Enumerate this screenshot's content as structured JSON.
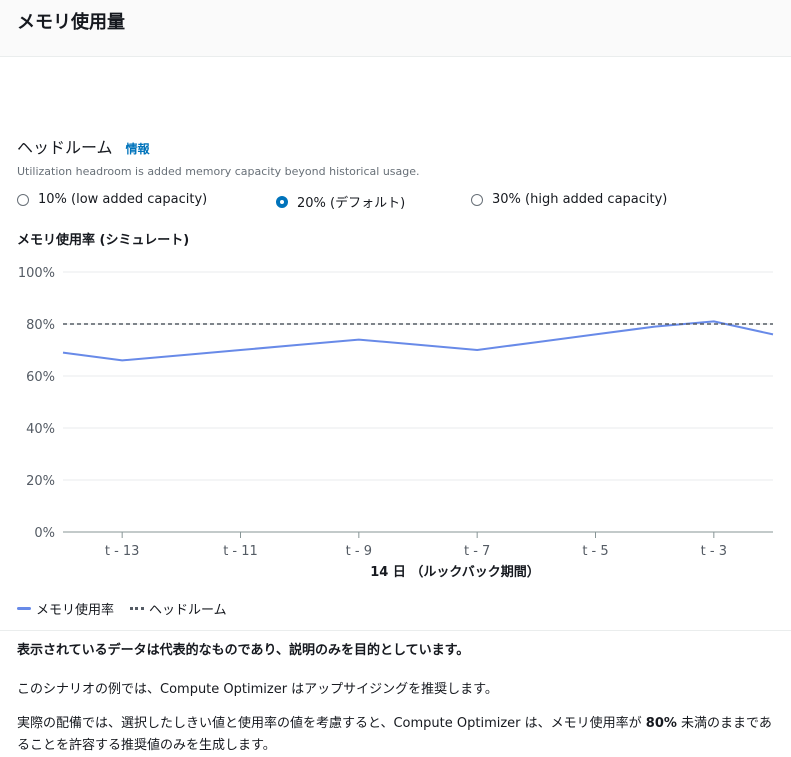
{
  "header": {
    "title": "メモリ使用量"
  },
  "headroom": {
    "title": "ヘッドルーム",
    "info_link": "情報",
    "description": "Utilization headroom is added memory capacity beyond historical usage.",
    "options": [
      {
        "label": "10% (low added capacity)",
        "selected": false
      },
      {
        "label": "20% (デフォルト)",
        "selected": true
      },
      {
        "label": "30% (high added capacity)",
        "selected": false
      }
    ]
  },
  "chart_title": "メモリ使用率 (シミュレート)",
  "chart_data": {
    "type": "line",
    "x_ticks": [
      "t - 13",
      "t - 11",
      "t - 9",
      "t - 7",
      "t - 5",
      "t - 3"
    ],
    "xlabel": "14 日 （ルックバック期間）",
    "y_ticks": [
      "0%",
      "20%",
      "40%",
      "60%",
      "80%",
      "100%"
    ],
    "ylim": [
      0,
      100
    ],
    "grid": true,
    "series": [
      {
        "name": "メモリ使用率",
        "style": "solid",
        "color": "#688ae8",
        "x": [
          14,
          13,
          12,
          11,
          10,
          9,
          8,
          7,
          6,
          5,
          4,
          3,
          2
        ],
        "values": [
          69,
          66,
          68,
          70,
          72,
          74,
          72,
          70,
          73,
          76,
          79,
          81,
          76
        ]
      },
      {
        "name": "ヘッドルーム",
        "style": "dashed",
        "color": "#545b64",
        "x": [
          14,
          2
        ],
        "values": [
          80,
          80
        ]
      }
    ],
    "legend_position": "bottom-left"
  },
  "legend": {
    "usage": "メモリ使用率",
    "headroom": "ヘッドルーム"
  },
  "notes": {
    "bold": "表示されているデータは代表的なものであり、説明のみを目的としています。",
    "p1": "このシナリオの例では、Compute Optimizer はアップサイジングを推奨します。",
    "p2_before": "実際の配備では、選択したしきい値と使用率の値を考慮すると、Compute Optimizer は、メモリ使用率が ",
    "p2_bold": "80%",
    "p2_after": " 未満のままであることを許容する推奨値のみを生成します。"
  }
}
